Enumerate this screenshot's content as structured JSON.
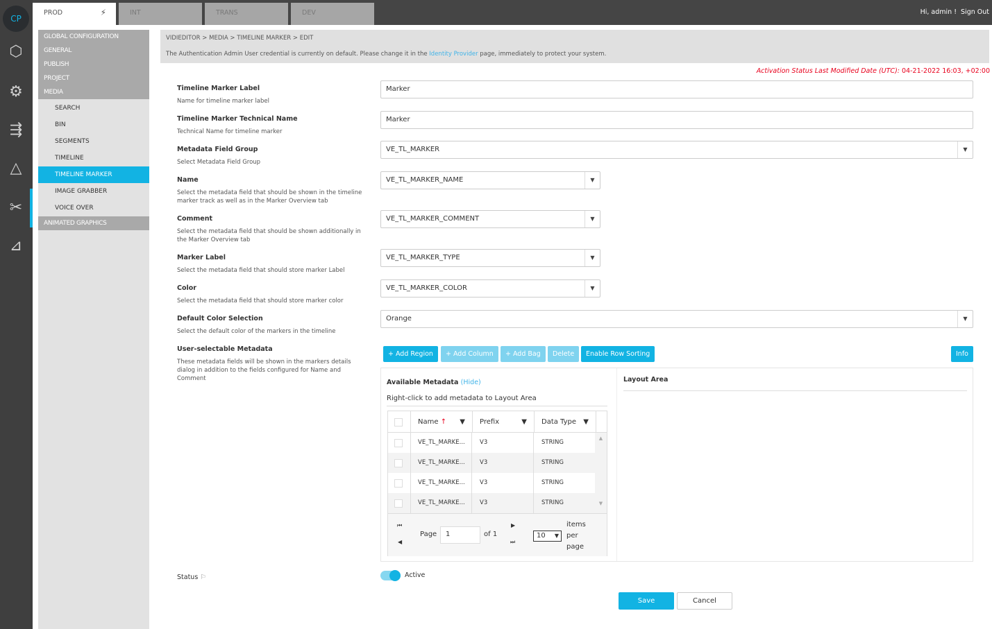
{
  "app": {
    "logo": "CP",
    "rail_icons": [
      "cubes-icon",
      "network-icon",
      "workflow-icon",
      "cycle-icon",
      "media-tools-icon",
      "deploy-icon"
    ]
  },
  "env_tabs": [
    "PROD",
    "INT",
    "TRANS",
    "DEV"
  ],
  "user": {
    "greeting": "Hi, admin !",
    "sign_out": "Sign Out"
  },
  "nav": {
    "groups": [
      "GLOBAL CONFIGURATION",
      "GENERAL",
      "PUBLISH",
      "PROJECT",
      "MEDIA"
    ],
    "media_items": [
      "SEARCH",
      "BIN",
      "SEGMENTS",
      "TIMELINE",
      "TIMELINE MARKER",
      "IMAGE GRABBER",
      "VOICE OVER"
    ],
    "after": "ANIMATED GRAPHICS"
  },
  "breadcrumb": [
    "VIDIEDITOR",
    "MEDIA",
    "TIMELINE MARKER",
    "EDIT"
  ],
  "notice": {
    "before": "The Authentication Admin User credential is currently on default. Please change it in the ",
    "link": "Identity Provider",
    "after": " page, immediately to protect your system."
  },
  "activation": {
    "label": "Activation Status Last Modified Date (UTC):",
    "value": "04-21-2022 16:03, +02:00"
  },
  "fields": [
    {
      "label": "Timeline Marker Label",
      "desc": "Name for timeline marker label",
      "value": "Marker"
    },
    {
      "label": "Timeline Marker Technical Name",
      "desc": "Technical Name for timeline marker",
      "value": "Marker"
    },
    {
      "label": "Metadata Field Group",
      "desc": "Select Metadata Field Group",
      "value": "VE_TL_MARKER"
    },
    {
      "label": "Name",
      "desc": "Select the metadata field that should be shown in the timeline marker track as well as in the Marker Overview tab",
      "value": "VE_TL_MARKER_NAME"
    },
    {
      "label": "Comment",
      "desc": "Select the metadata field that should be shown additionally in the Marker Overview tab",
      "value": "VE_TL_MARKER_COMMENT"
    },
    {
      "label": "Marker Label",
      "desc": "Select the metadata field that should store marker Label",
      "value": "VE_TL_MARKER_TYPE"
    },
    {
      "label": "Color",
      "desc": "Select the metadata field that should store marker color",
      "value": "VE_TL_MARKER_COLOR"
    },
    {
      "label": "Default Color Selection",
      "desc": "Select the default color of the markers in the timeline",
      "value": "Orange"
    },
    {
      "label": "User-selectable Metadata",
      "desc": "These metadata fields will be shown in the markers details dialog in addition to the fields configured for Name and Comment"
    }
  ],
  "toolbar": {
    "add_region": "+ Add Region",
    "add_column": "+ Add Column",
    "add_bag": "+ Add Bag",
    "delete": "Delete",
    "row_sorting": "Enable Row Sorting",
    "info": "Info"
  },
  "available": {
    "title": "Available Metadata",
    "hide": "(Hide)",
    "hint": "Right-click to add metadata to Layout Area",
    "columns": [
      "Name",
      "Prefix",
      "Data Type"
    ],
    "rows": [
      [
        "VE_TL_MARKE...",
        "V3",
        "STRING"
      ],
      [
        "VE_TL_MARKE...",
        "V3",
        "STRING"
      ],
      [
        "VE_TL_MARKE...",
        "V3",
        "STRING"
      ],
      [
        "VE_TL_MARKE...",
        "V3",
        "STRING"
      ]
    ],
    "pager": {
      "page_label": "Page",
      "page": "1",
      "of": "of 1",
      "per_page": "10",
      "items_per_page": [
        "items",
        "per",
        "page"
      ]
    }
  },
  "layout_area": "Layout Area",
  "status": {
    "label": "Status",
    "value": "Active",
    "on": true
  },
  "actions": {
    "save": "Save",
    "cancel": "Cancel"
  },
  "colors": {
    "accent": "#12b3e3",
    "warning": "#e8001c"
  }
}
